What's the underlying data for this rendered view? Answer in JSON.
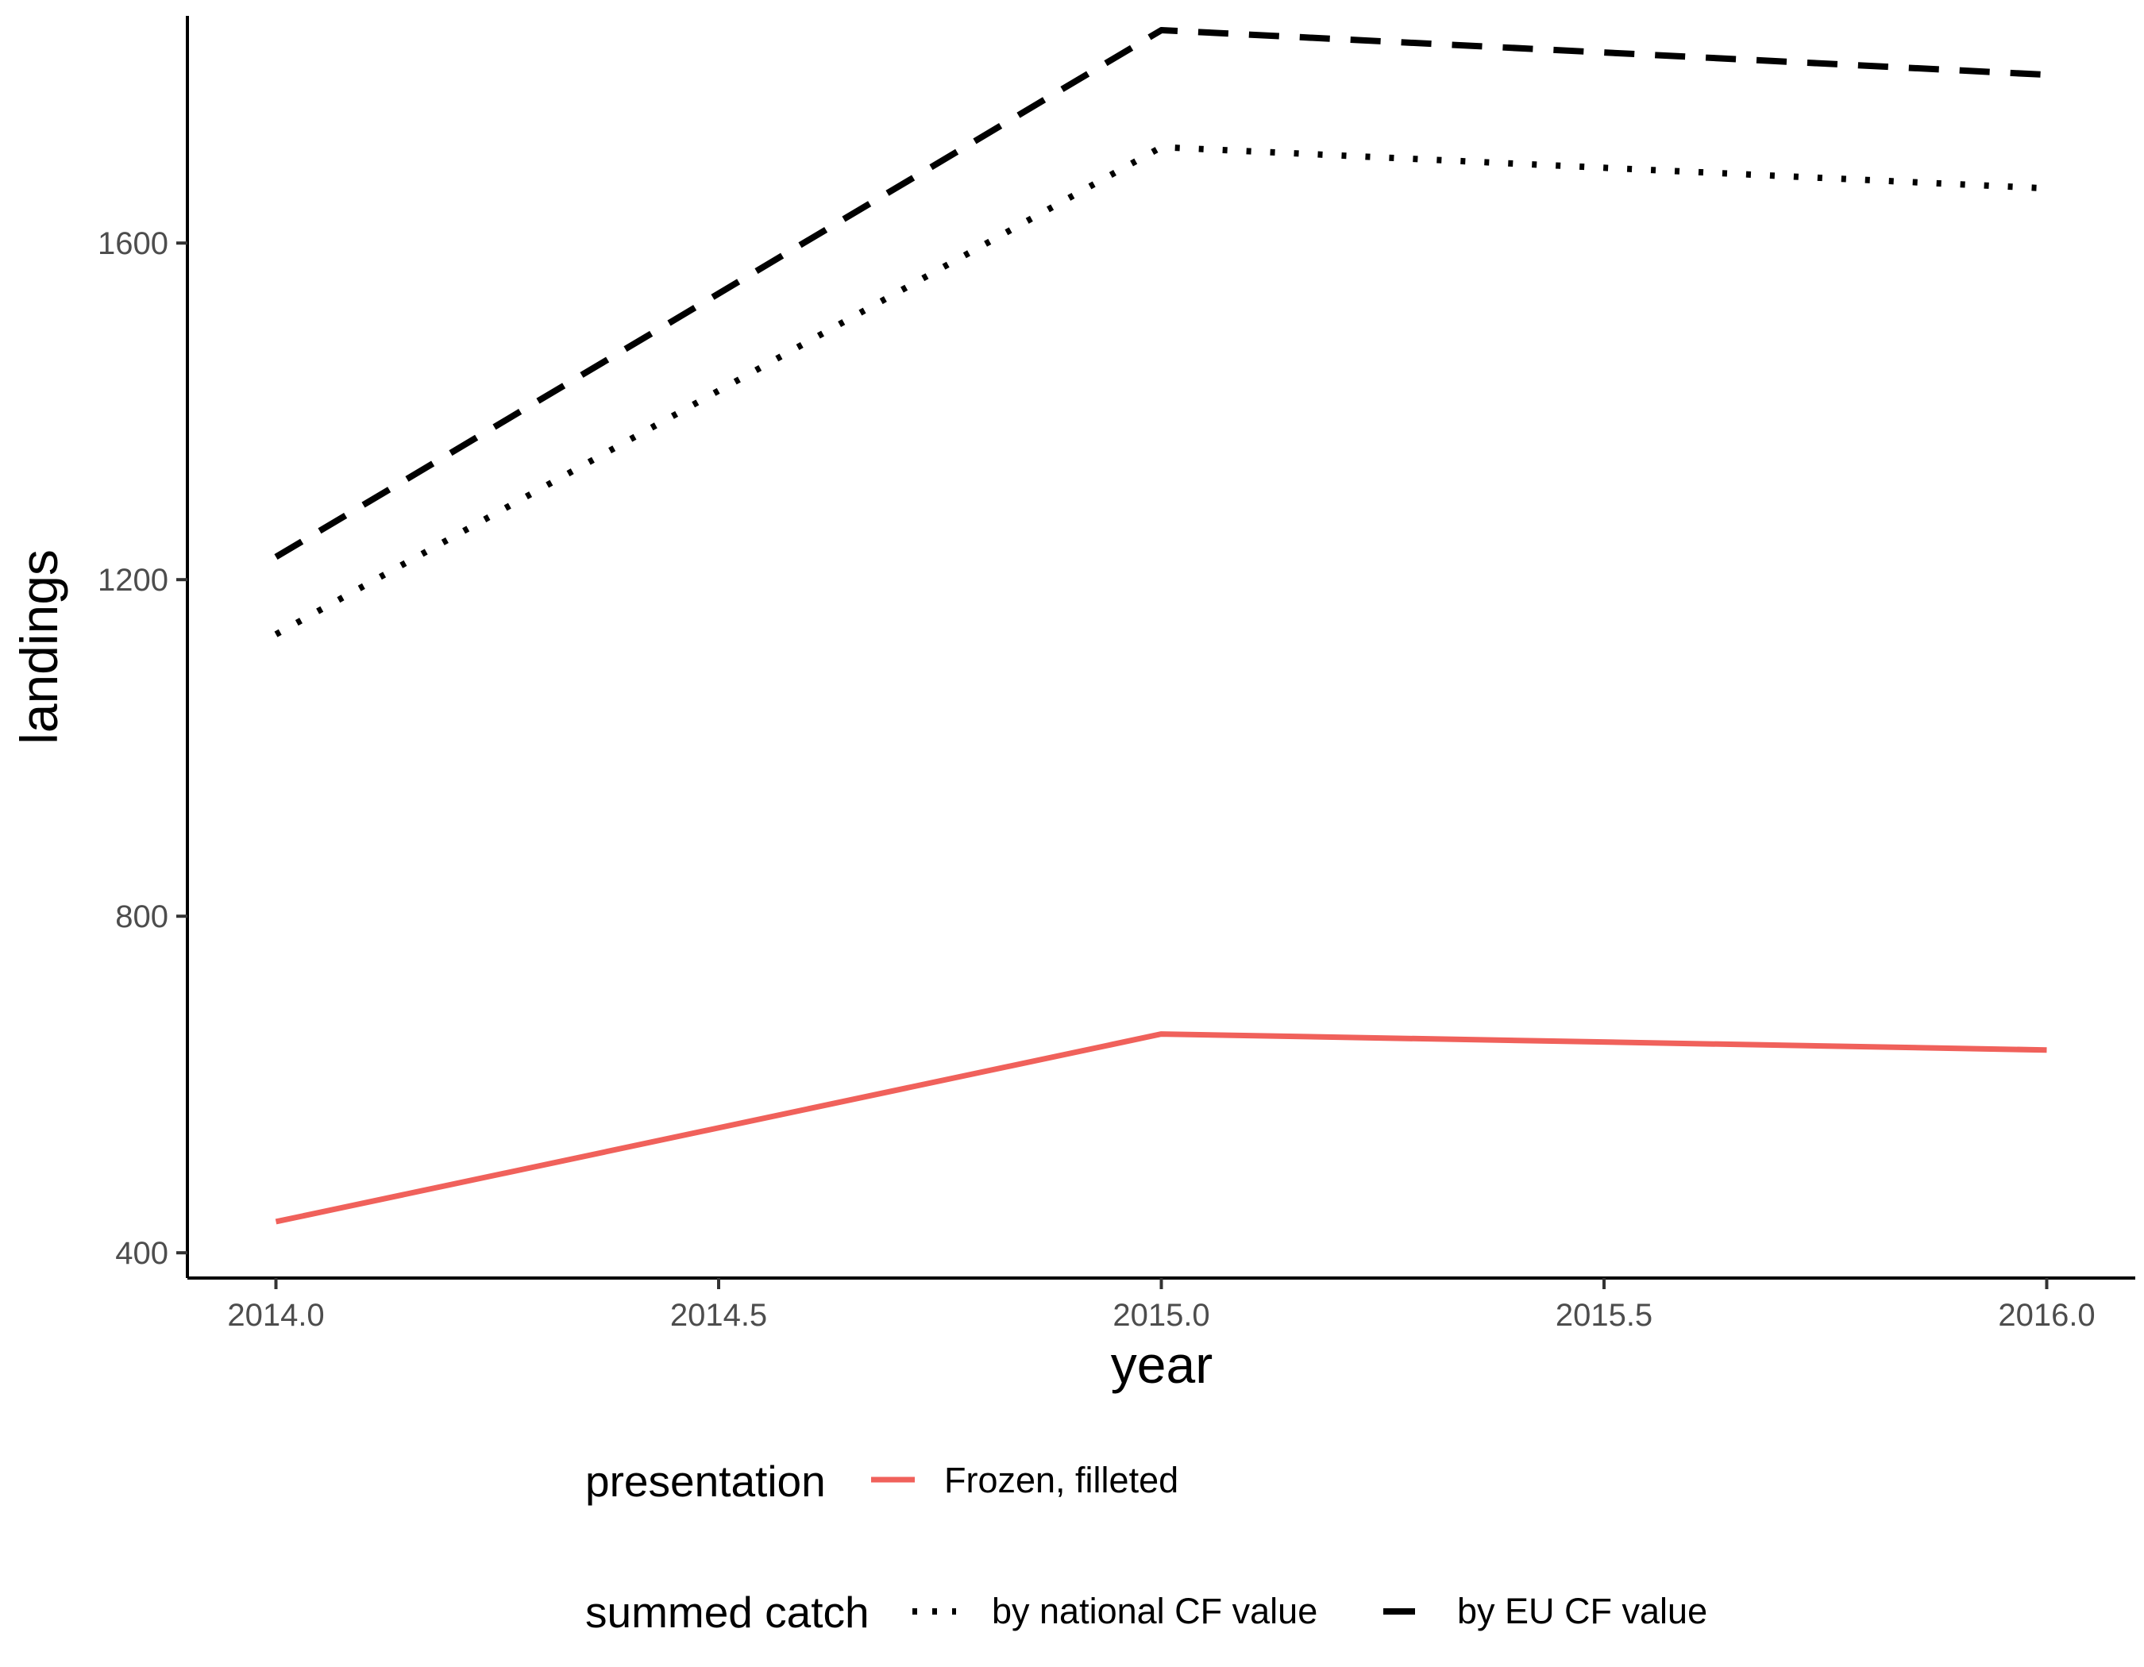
{
  "chart_data": {
    "type": "line",
    "xlabel": "year",
    "ylabel": "landings",
    "xlim": [
      1.9,
      2016.1
    ],
    "x_range": [
      2013.9,
      2016.1
    ],
    "ylim": [
      370,
      1870
    ],
    "x_ticks": [
      "2014.0",
      "2014.5",
      "2015.0",
      "2015.5",
      "2016.0"
    ],
    "x_tick_values": [
      2014.0,
      2014.5,
      2015.0,
      2015.5,
      2016.0
    ],
    "y_ticks": [
      "400",
      "800",
      "1200",
      "1600"
    ],
    "y_tick_values": [
      400,
      800,
      1200,
      1600
    ],
    "grid": false,
    "legend_position": "bottom",
    "series": [
      {
        "name": "Frozen, filleted",
        "x": [
          2014,
          2015,
          2016
        ],
        "values": [
          437,
          660,
          641
        ],
        "color": "#F0615B",
        "dash": "solid"
      },
      {
        "name": "by national CF value",
        "x": [
          2014,
          2015,
          2016
        ],
        "values": [
          1135,
          1714,
          1665
        ],
        "color": "#000000",
        "dash": "dotted"
      },
      {
        "name": "by EU CF value",
        "x": [
          2014,
          2015,
          2016
        ],
        "values": [
          1227,
          1853,
          1800
        ],
        "color": "#000000",
        "dash": "dashed"
      }
    ],
    "legends": [
      {
        "title": "presentation",
        "items": [
          "Frozen, filleted"
        ]
      },
      {
        "title": "summed catch",
        "items": [
          "by national CF value",
          "by EU CF value"
        ]
      }
    ]
  }
}
